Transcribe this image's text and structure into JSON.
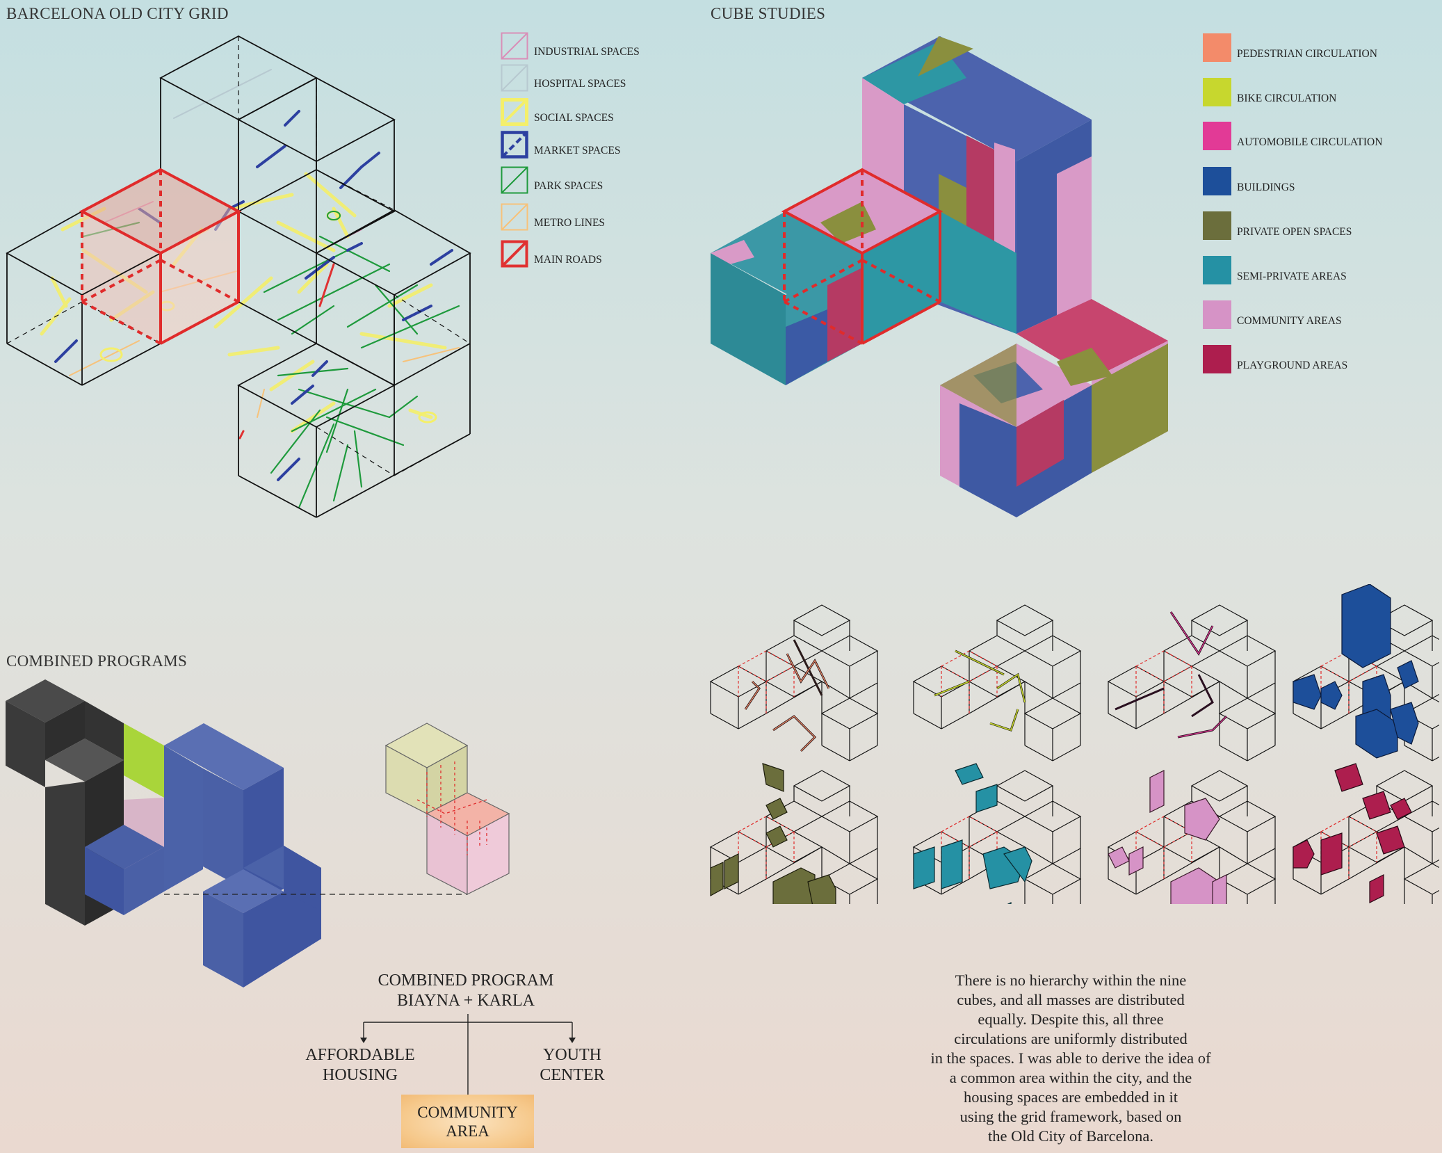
{
  "sections": {
    "grid_title": "BARCELONA OLD CITY GRID",
    "cube_title": "CUBE STUDIES",
    "combined_title": "COMBINED PROGRAMS"
  },
  "grid_legend": [
    {
      "label": "INDUSTRIAL SPACES",
      "color": "#d98fb8"
    },
    {
      "label": "HOSPITAL SPACES",
      "color": "#b7c9d0"
    },
    {
      "label": "SOCIAL SPACES",
      "color": "#f4ef6a"
    },
    {
      "label": "MARKET SPACES",
      "color": "#2d40a0"
    },
    {
      "label": "PARK SPACES",
      "color": "#1e9a3c"
    },
    {
      "label": "METRO LINES",
      "color": "#f7c27a"
    },
    {
      "label": "MAIN ROADS",
      "color": "#e03131"
    }
  ],
  "cube_legend": [
    {
      "label": "PEDESTRIAN CIRCULATION",
      "color": "#f38b6a"
    },
    {
      "label": "BIKE CIRCULATION",
      "color": "#c7d72e"
    },
    {
      "label": "AUTOMOBILE CIRCULATION",
      "color": "#e23a96"
    },
    {
      "label": "BUILDINGS",
      "color": "#1d4f9a"
    },
    {
      "label": "PRIVATE OPEN SPACES",
      "color": "#6b6e3c"
    },
    {
      "label": "SEMI-PRIVATE AREAS",
      "color": "#2591a4"
    },
    {
      "label": "COMMUNITY AREAS",
      "color": "#d693c6"
    },
    {
      "label": "PLAYGROUND AREAS",
      "color": "#ad1e4e"
    }
  ],
  "program": {
    "title_line1": "COMBINED PROGRAM",
    "title_line2": "BIAYNA + KARLA",
    "left_line1": "AFFORDABLE",
    "left_line2": "HOUSING",
    "right_line1": "YOUTH",
    "right_line2": "CENTER",
    "center_line1": "COMMUNITY",
    "center_line2": "AREA"
  },
  "description": [
    "There is no hierarchy within the nine",
    "cubes, and all masses are distributed",
    "equally. Despite this, all three",
    "circulations are uniformly distributed",
    "in the spaces. I was able to derive the idea of",
    "a common area within the city, and the",
    "housing spaces are embedded in it",
    "using the grid framework, based on",
    "the Old City of Barcelona."
  ],
  "colors": {
    "road_red": "#e02b2b",
    "dark_mass": "#3a3a3a",
    "blue_mass": "#4a60a6",
    "lime_accent": "#a9d53a",
    "pink_mass": "#e7c7d8"
  }
}
